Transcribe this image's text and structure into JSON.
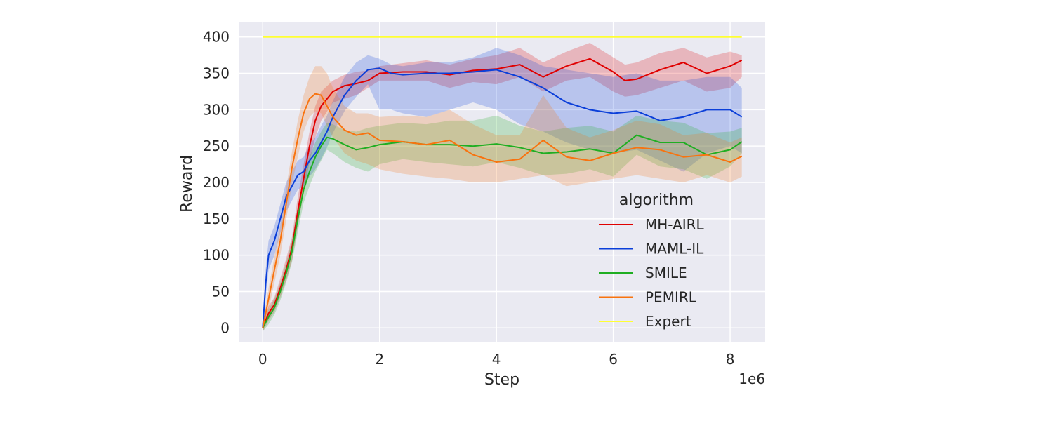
{
  "chart_data": {
    "type": "line",
    "title": "",
    "xlabel": "Step",
    "ylabel": "Reward",
    "x_multiplier_label": "1e6",
    "xlim": [
      -0.4,
      8.6
    ],
    "ylim": [
      -20,
      420
    ],
    "x_ticks": [
      0,
      2,
      4,
      6,
      8
    ],
    "x_tick_labels": [
      "0",
      "2",
      "4",
      "6",
      "8"
    ],
    "y_ticks": [
      0,
      50,
      100,
      150,
      200,
      250,
      300,
      350,
      400
    ],
    "y_tick_labels": [
      "0",
      "50",
      "100",
      "150",
      "200",
      "250",
      "300",
      "350",
      "400"
    ],
    "grid": true,
    "background": "#eaeaf2",
    "legend": {
      "title": "algorithm",
      "placement": "lower-right"
    },
    "series": [
      {
        "name": "MH-AIRL",
        "color": "#e00000",
        "x": [
          0,
          0.1,
          0.2,
          0.3,
          0.4,
          0.5,
          0.6,
          0.7,
          0.8,
          0.9,
          1.0,
          1.2,
          1.4,
          1.6,
          1.8,
          2.0,
          2.4,
          2.8,
          3.2,
          3.6,
          4.0,
          4.4,
          4.8,
          5.2,
          5.6,
          6.0,
          6.2,
          6.4,
          6.8,
          7.2,
          7.6,
          8.0,
          8.2
        ],
        "mean": [
          0,
          20,
          32,
          55,
          80,
          110,
          160,
          205,
          250,
          285,
          305,
          325,
          333,
          336,
          340,
          350,
          352,
          352,
          348,
          354,
          356,
          362,
          345,
          360,
          370,
          352,
          340,
          342,
          355,
          365,
          350,
          360,
          368
        ],
        "lower": [
          -5,
          10,
          22,
          42,
          65,
          92,
          140,
          185,
          228,
          262,
          285,
          310,
          315,
          320,
          330,
          340,
          340,
          340,
          330,
          338,
          335,
          345,
          325,
          340,
          345,
          325,
          318,
          320,
          330,
          340,
          325,
          330,
          345
        ],
        "upper": [
          5,
          30,
          42,
          68,
          95,
          125,
          180,
          225,
          270,
          305,
          325,
          340,
          348,
          352,
          354,
          360,
          364,
          368,
          362,
          370,
          375,
          385,
          365,
          380,
          392,
          372,
          362,
          365,
          378,
          385,
          372,
          380,
          375
        ]
      },
      {
        "name": "MAML-IL",
        "color": "#0b3fd9",
        "x": [
          0,
          0.05,
          0.1,
          0.2,
          0.3,
          0.4,
          0.5,
          0.6,
          0.7,
          0.8,
          0.9,
          1.0,
          1.1,
          1.2,
          1.4,
          1.6,
          1.8,
          2.0,
          2.2,
          2.4,
          2.8,
          3.2,
          3.6,
          4.0,
          4.4,
          4.8,
          5.2,
          5.6,
          6.0,
          6.4,
          6.8,
          7.2,
          7.6,
          8.0,
          8.2
        ],
        "mean": [
          0,
          60,
          100,
          120,
          150,
          180,
          195,
          210,
          215,
          230,
          240,
          255,
          270,
          290,
          320,
          340,
          355,
          357,
          350,
          348,
          350,
          350,
          352,
          355,
          345,
          330,
          310,
          300,
          295,
          298,
          285,
          290,
          300,
          300,
          290
        ],
        "lower": [
          -5,
          40,
          80,
          100,
          130,
          160,
          175,
          190,
          195,
          208,
          218,
          232,
          248,
          268,
          298,
          318,
          335,
          300,
          300,
          295,
          290,
          300,
          310,
          300,
          280,
          270,
          255,
          245,
          240,
          245,
          230,
          215,
          240,
          250,
          240
        ],
        "upper": [
          5,
          80,
          120,
          140,
          170,
          200,
          215,
          230,
          235,
          252,
          262,
          278,
          292,
          312,
          345,
          365,
          375,
          370,
          362,
          360,
          365,
          365,
          372,
          385,
          375,
          360,
          355,
          350,
          345,
          350,
          340,
          340,
          345,
          345,
          330
        ]
      },
      {
        "name": "SMILE",
        "color": "#1fae22",
        "x": [
          0,
          0.1,
          0.2,
          0.3,
          0.4,
          0.5,
          0.6,
          0.7,
          0.8,
          0.9,
          1.0,
          1.1,
          1.2,
          1.4,
          1.6,
          1.8,
          2.0,
          2.4,
          2.8,
          3.2,
          3.6,
          4.0,
          4.4,
          4.8,
          5.2,
          5.6,
          6.0,
          6.4,
          6.8,
          7.2,
          7.6,
          8.0,
          8.2
        ],
        "mean": [
          0,
          15,
          28,
          50,
          75,
          105,
          150,
          190,
          215,
          235,
          250,
          262,
          260,
          252,
          245,
          248,
          252,
          256,
          252,
          252,
          250,
          253,
          248,
          240,
          242,
          246,
          240,
          265,
          255,
          255,
          238,
          245,
          256
        ],
        "lower": [
          -5,
          5,
          18,
          38,
          62,
          90,
          132,
          172,
          195,
          215,
          230,
          245,
          240,
          228,
          220,
          215,
          225,
          232,
          228,
          225,
          222,
          228,
          220,
          210,
          212,
          218,
          208,
          238,
          222,
          218,
          205,
          222,
          240
        ],
        "upper": [
          5,
          25,
          40,
          62,
          90,
          120,
          168,
          208,
          235,
          255,
          270,
          282,
          280,
          272,
          270,
          275,
          278,
          282,
          280,
          285,
          285,
          292,
          278,
          270,
          275,
          278,
          270,
          292,
          285,
          282,
          268,
          270,
          275
        ]
      },
      {
        "name": "PEMIRL",
        "color": "#f8730f",
        "x": [
          0,
          0.1,
          0.2,
          0.3,
          0.4,
          0.5,
          0.6,
          0.7,
          0.8,
          0.9,
          1.0,
          1.1,
          1.2,
          1.4,
          1.6,
          1.8,
          2.0,
          2.4,
          2.8,
          3.2,
          3.6,
          4.0,
          4.4,
          4.8,
          5.2,
          5.6,
          6.0,
          6.4,
          6.8,
          7.2,
          7.6,
          8.0,
          8.2
        ],
        "mean": [
          0,
          40,
          80,
          120,
          170,
          220,
          260,
          295,
          315,
          322,
          320,
          305,
          290,
          272,
          265,
          268,
          258,
          256,
          252,
          258,
          238,
          228,
          232,
          258,
          235,
          230,
          240,
          248,
          245,
          235,
          238,
          228,
          236
        ],
        "lower": [
          -5,
          25,
          62,
          100,
          148,
          198,
          235,
          270,
          290,
          298,
          295,
          278,
          262,
          240,
          230,
          225,
          218,
          212,
          208,
          205,
          200,
          200,
          205,
          210,
          195,
          200,
          205,
          210,
          205,
          200,
          210,
          200,
          208
        ],
        "upper": [
          5,
          55,
          98,
          140,
          192,
          242,
          285,
          320,
          345,
          360,
          360,
          350,
          330,
          305,
          295,
          295,
          290,
          292,
          290,
          300,
          280,
          265,
          265,
          320,
          275,
          262,
          272,
          285,
          280,
          265,
          268,
          255,
          262
        ]
      },
      {
        "name": "Expert",
        "color": "#ffff33",
        "x": [
          0,
          8.2
        ],
        "mean": [
          400,
          400
        ]
      }
    ]
  }
}
